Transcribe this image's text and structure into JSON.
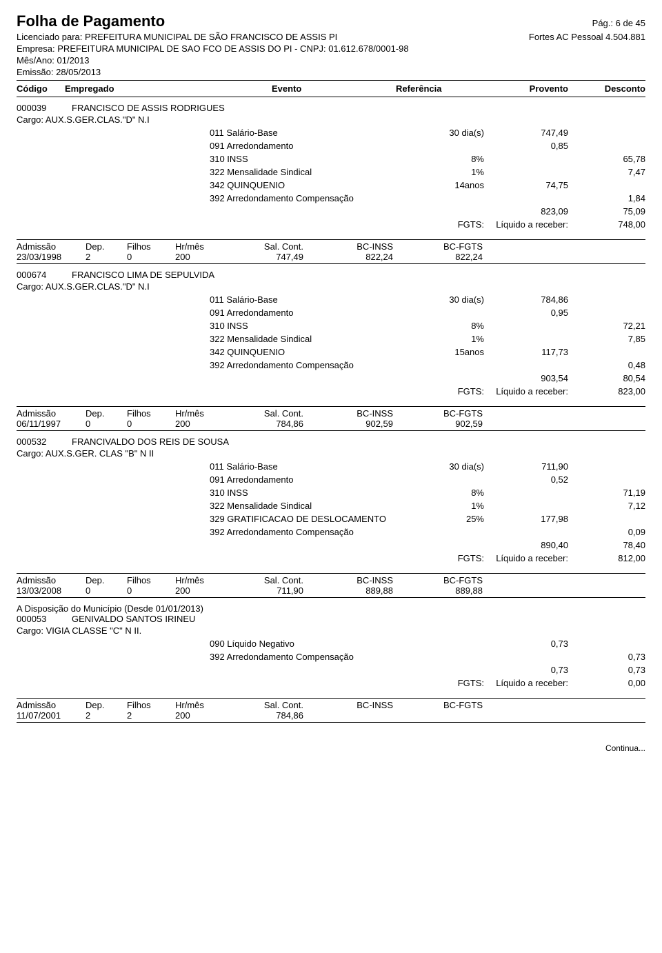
{
  "header": {
    "title": "Folha de Pagamento",
    "page_info": "Pág.: 6 de 45",
    "licensed_label": "Licenciado para:",
    "licensed_to": "PREFEITURA MUNICIPAL DE SÃO FRANCISCO DE ASSIS PI",
    "software": "Fortes AC Pessoal 4.504.881",
    "company_label": "Empresa:",
    "company": "PREFEITURA MUNICIPAL DE SAO FCO DE ASSIS DO PI - CNPJ: 01.612.678/0001-98",
    "month_label": "Mês/Ano:",
    "month": "01/2013",
    "emission_label": "Emissão:",
    "emission": "28/05/2013"
  },
  "columns": {
    "codigo": "Código",
    "empregado": "Empregado",
    "evento": "Evento",
    "referencia": "Referência",
    "provento": "Provento",
    "desconto": "Desconto"
  },
  "footer_labels": {
    "admissao": "Admissão",
    "dep": "Dep.",
    "filhos": "Filhos",
    "hrmes": "Hr/mês",
    "salcont": "Sal. Cont.",
    "bcinss": "BC-INSS",
    "bcfgts": "BC-FGTS",
    "fgts": "FGTS:",
    "liquido": "Líquido a receber:"
  },
  "employees": [
    {
      "code": "000039",
      "name": "FRANCISCO DE ASSIS RODRIGUES",
      "cargo": "Cargo: AUX.S.GER.CLAS.\"D\" N.I",
      "events": [
        {
          "name": "011 Salário-Base",
          "ref": "30 dia(s)",
          "prov": "747,49",
          "desc": ""
        },
        {
          "name": "091 Arredondamento",
          "ref": "",
          "prov": "0,85",
          "desc": ""
        },
        {
          "name": "310 INSS",
          "ref": "8%",
          "prov": "",
          "desc": "65,78"
        },
        {
          "name": "322 Mensalidade Sindical",
          "ref": "1%",
          "prov": "",
          "desc": "7,47"
        },
        {
          "name": "342 QUINQUENIO",
          "ref": "14anos",
          "prov": "74,75",
          "desc": ""
        },
        {
          "name": "392 Arredondamento Compensação",
          "ref": "",
          "prov": "",
          "desc": "1,84"
        }
      ],
      "totals": {
        "prov": "823,09",
        "desc": "75,09",
        "liquido": "748,00"
      },
      "footer": {
        "admissao": "23/03/1998",
        "dep": "2",
        "filhos": "0",
        "hrmes": "200",
        "salcont": "747,49",
        "bcinss": "822,24",
        "bcfgts": "822,24"
      }
    },
    {
      "code": "000674",
      "name": "FRANCISCO LIMA DE SEPULVIDA",
      "cargo": "Cargo: AUX.S.GER.CLAS.\"D\" N.I",
      "events": [
        {
          "name": "011 Salário-Base",
          "ref": "30 dia(s)",
          "prov": "784,86",
          "desc": ""
        },
        {
          "name": "091 Arredondamento",
          "ref": "",
          "prov": "0,95",
          "desc": ""
        },
        {
          "name": "310 INSS",
          "ref": "8%",
          "prov": "",
          "desc": "72,21"
        },
        {
          "name": "322 Mensalidade Sindical",
          "ref": "1%",
          "prov": "",
          "desc": "7,85"
        },
        {
          "name": "342 QUINQUENIO",
          "ref": "15anos",
          "prov": "117,73",
          "desc": ""
        },
        {
          "name": "392 Arredondamento Compensação",
          "ref": "",
          "prov": "",
          "desc": "0,48"
        }
      ],
      "totals": {
        "prov": "903,54",
        "desc": "80,54",
        "liquido": "823,00"
      },
      "footer": {
        "admissao": "06/11/1997",
        "dep": "0",
        "filhos": "0",
        "hrmes": "200",
        "salcont": "784,86",
        "bcinss": "902,59",
        "bcfgts": "902,59"
      }
    },
    {
      "code": "000532",
      "name": "FRANCIVALDO DOS REIS DE SOUSA",
      "cargo": "Cargo: AUX.S.GER. CLAS \"B\" N II",
      "events": [
        {
          "name": "011 Salário-Base",
          "ref": "30 dia(s)",
          "prov": "711,90",
          "desc": ""
        },
        {
          "name": "091 Arredondamento",
          "ref": "",
          "prov": "0,52",
          "desc": ""
        },
        {
          "name": "310 INSS",
          "ref": "8%",
          "prov": "",
          "desc": "71,19"
        },
        {
          "name": "322 Mensalidade Sindical",
          "ref": "1%",
          "prov": "",
          "desc": "7,12"
        },
        {
          "name": "329 GRATIFICACAO DE DESLOCAMENTO",
          "ref": "25%",
          "prov": "177,98",
          "desc": ""
        },
        {
          "name": "392 Arredondamento Compensação",
          "ref": "",
          "prov": "",
          "desc": "0,09"
        }
      ],
      "totals": {
        "prov": "890,40",
        "desc": "78,40",
        "liquido": "812,00"
      },
      "footer": {
        "admissao": "13/03/2008",
        "dep": "0",
        "filhos": "0",
        "hrmes": "200",
        "salcont": "711,90",
        "bcinss": "889,88",
        "bcfgts": "889,88"
      }
    },
    {
      "note": "A Disposição do Município (Desde 01/01/2013)",
      "code": "000053",
      "name": "GENIVALDO SANTOS IRINEU",
      "cargo": "Cargo: VIGIA CLASSE \"C\" N II.",
      "events": [
        {
          "name": "090 Líquido Negativo",
          "ref": "",
          "prov": "0,73",
          "desc": ""
        },
        {
          "name": "392 Arredondamento Compensação",
          "ref": "",
          "prov": "",
          "desc": "0,73"
        }
      ],
      "totals": {
        "prov": "0,73",
        "desc": "0,73",
        "liquido": "0,00"
      },
      "footer": {
        "admissao": "11/07/2001",
        "dep": "2",
        "filhos": "2",
        "hrmes": "200",
        "salcont": "784,86",
        "bcinss": "",
        "bcfgts": ""
      }
    }
  ],
  "continua": "Continua..."
}
